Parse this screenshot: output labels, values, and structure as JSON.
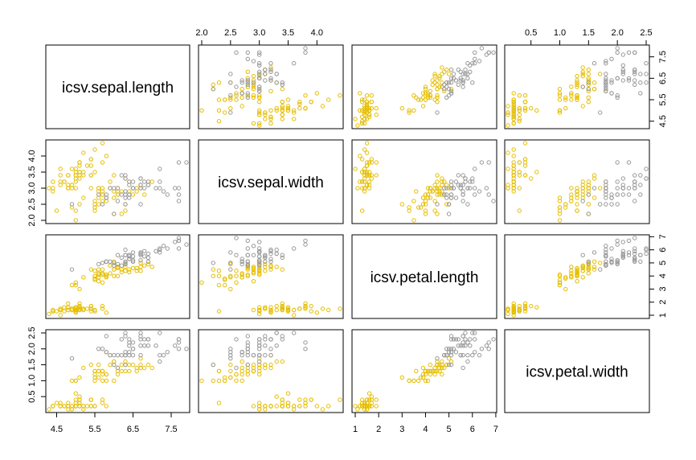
{
  "chart_data": {
    "type": "scatter",
    "title": "",
    "variables": [
      "icsv.sepal.length",
      "icsv.sepal.width",
      "icsv.petal.length",
      "icsv.petal.width"
    ],
    "ranges": [
      [
        4.3,
        7.9
      ],
      [
        2.0,
        4.4
      ],
      [
        1.0,
        6.9
      ],
      [
        0.1,
        2.5
      ]
    ],
    "ticks": [
      [
        "4.5",
        "5.5",
        "6.5",
        "7.5"
      ],
      [
        "2.0",
        "2.5",
        "3.0",
        "3.5",
        "4.0"
      ],
      [
        "1",
        "2",
        "3",
        "4",
        "5",
        "6",
        "7"
      ],
      [
        "0.5",
        "1.0",
        "1.5",
        "2.0",
        "2.5"
      ]
    ],
    "group_colors": {
      "setosa_versicolor": "#e5be01",
      "virginica": "#999999"
    },
    "grid": false,
    "series": [
      {
        "color": "#e5be01",
        "points": [
          [
            5.1,
            3.5,
            1.4,
            0.2
          ],
          [
            4.9,
            3.0,
            1.4,
            0.2
          ],
          [
            4.7,
            3.2,
            1.3,
            0.2
          ],
          [
            4.6,
            3.1,
            1.5,
            0.2
          ],
          [
            5.0,
            3.6,
            1.4,
            0.2
          ],
          [
            5.4,
            3.9,
            1.7,
            0.4
          ],
          [
            4.6,
            3.4,
            1.4,
            0.3
          ],
          [
            5.0,
            3.4,
            1.5,
            0.2
          ],
          [
            4.4,
            2.9,
            1.4,
            0.2
          ],
          [
            4.9,
            3.1,
            1.5,
            0.1
          ],
          [
            5.4,
            3.7,
            1.5,
            0.2
          ],
          [
            4.8,
            3.4,
            1.6,
            0.2
          ],
          [
            4.8,
            3.0,
            1.4,
            0.1
          ],
          [
            4.3,
            3.0,
            1.1,
            0.1
          ],
          [
            5.8,
            4.0,
            1.2,
            0.2
          ],
          [
            5.7,
            4.4,
            1.5,
            0.4
          ],
          [
            5.4,
            3.9,
            1.3,
            0.4
          ],
          [
            5.1,
            3.5,
            1.4,
            0.3
          ],
          [
            5.7,
            3.8,
            1.7,
            0.3
          ],
          [
            5.1,
            3.8,
            1.5,
            0.3
          ],
          [
            5.4,
            3.4,
            1.7,
            0.2
          ],
          [
            5.1,
            3.7,
            1.5,
            0.4
          ],
          [
            4.6,
            3.6,
            1.0,
            0.2
          ],
          [
            5.1,
            3.3,
            1.7,
            0.5
          ],
          [
            4.8,
            3.4,
            1.9,
            0.2
          ],
          [
            5.0,
            3.0,
            1.6,
            0.2
          ],
          [
            5.0,
            3.4,
            1.6,
            0.4
          ],
          [
            5.2,
            3.5,
            1.5,
            0.2
          ],
          [
            5.2,
            3.4,
            1.4,
            0.2
          ],
          [
            4.7,
            3.2,
            1.6,
            0.2
          ],
          [
            4.8,
            3.1,
            1.6,
            0.2
          ],
          [
            5.4,
            3.4,
            1.5,
            0.4
          ],
          [
            5.2,
            4.1,
            1.5,
            0.1
          ],
          [
            5.5,
            4.2,
            1.4,
            0.2
          ],
          [
            4.9,
            3.1,
            1.5,
            0.2
          ],
          [
            5.0,
            3.2,
            1.2,
            0.2
          ],
          [
            5.5,
            3.5,
            1.3,
            0.2
          ],
          [
            4.9,
            3.6,
            1.4,
            0.1
          ],
          [
            4.4,
            3.0,
            1.3,
            0.2
          ],
          [
            5.1,
            3.4,
            1.5,
            0.2
          ],
          [
            5.0,
            3.5,
            1.3,
            0.3
          ],
          [
            4.5,
            2.3,
            1.3,
            0.3
          ],
          [
            4.4,
            3.2,
            1.3,
            0.2
          ],
          [
            5.0,
            3.5,
            1.6,
            0.6
          ],
          [
            5.1,
            3.8,
            1.9,
            0.4
          ],
          [
            4.8,
            3.0,
            1.4,
            0.3
          ],
          [
            5.1,
            3.8,
            1.6,
            0.2
          ],
          [
            4.6,
            3.2,
            1.4,
            0.2
          ],
          [
            5.3,
            3.7,
            1.5,
            0.2
          ],
          [
            5.0,
            3.3,
            1.4,
            0.2
          ],
          [
            7.0,
            3.2,
            4.7,
            1.4
          ],
          [
            6.4,
            3.2,
            4.5,
            1.5
          ],
          [
            6.9,
            3.1,
            4.9,
            1.5
          ],
          [
            5.5,
            2.3,
            4.0,
            1.3
          ],
          [
            6.5,
            2.8,
            4.6,
            1.5
          ],
          [
            5.7,
            2.8,
            4.5,
            1.3
          ],
          [
            6.3,
            3.3,
            4.7,
            1.6
          ],
          [
            4.9,
            2.4,
            3.3,
            1.0
          ],
          [
            6.6,
            2.9,
            4.6,
            1.3
          ],
          [
            5.2,
            2.7,
            3.9,
            1.4
          ],
          [
            5.0,
            2.0,
            3.5,
            1.0
          ],
          [
            5.9,
            3.0,
            4.2,
            1.5
          ],
          [
            6.0,
            2.2,
            4.0,
            1.0
          ],
          [
            6.1,
            2.9,
            4.7,
            1.4
          ],
          [
            5.6,
            2.9,
            3.6,
            1.3
          ],
          [
            6.7,
            3.1,
            4.4,
            1.4
          ],
          [
            5.6,
            3.0,
            4.5,
            1.5
          ],
          [
            5.8,
            2.7,
            4.1,
            1.0
          ],
          [
            6.2,
            2.2,
            4.5,
            1.5
          ],
          [
            5.6,
            2.5,
            3.9,
            1.1
          ],
          [
            5.9,
            3.2,
            4.8,
            1.8
          ],
          [
            6.1,
            2.8,
            4.0,
            1.3
          ],
          [
            6.3,
            2.5,
            4.9,
            1.5
          ],
          [
            6.1,
            2.8,
            4.7,
            1.2
          ],
          [
            6.4,
            2.9,
            4.3,
            1.3
          ],
          [
            6.6,
            3.0,
            4.4,
            1.4
          ],
          [
            6.8,
            2.8,
            4.8,
            1.4
          ],
          [
            6.7,
            3.0,
            5.0,
            1.7
          ],
          [
            6.0,
            2.9,
            4.5,
            1.5
          ],
          [
            5.7,
            2.6,
            3.5,
            1.0
          ],
          [
            5.5,
            2.4,
            3.8,
            1.1
          ],
          [
            5.5,
            2.4,
            3.7,
            1.0
          ],
          [
            5.8,
            2.7,
            3.9,
            1.2
          ],
          [
            6.0,
            2.7,
            5.1,
            1.6
          ],
          [
            5.4,
            3.0,
            4.5,
            1.5
          ],
          [
            6.0,
            3.4,
            4.5,
            1.6
          ],
          [
            6.7,
            3.1,
            4.7,
            1.5
          ],
          [
            6.3,
            2.3,
            4.4,
            1.3
          ],
          [
            5.6,
            3.0,
            4.1,
            1.3
          ],
          [
            5.5,
            2.5,
            4.0,
            1.3
          ],
          [
            5.5,
            2.6,
            4.4,
            1.2
          ],
          [
            6.1,
            3.0,
            4.6,
            1.4
          ],
          [
            5.8,
            2.6,
            4.0,
            1.2
          ],
          [
            5.0,
            2.3,
            3.3,
            1.0
          ],
          [
            5.6,
            2.7,
            4.2,
            1.3
          ],
          [
            5.7,
            3.0,
            4.2,
            1.2
          ],
          [
            5.7,
            2.9,
            4.2,
            1.3
          ],
          [
            6.2,
            2.9,
            4.3,
            1.3
          ],
          [
            5.1,
            2.5,
            3.0,
            1.1
          ],
          [
            5.7,
            2.8,
            4.1,
            1.3
          ]
        ]
      },
      {
        "color": "#999999",
        "points": [
          [
            6.3,
            3.3,
            6.0,
            2.5
          ],
          [
            5.8,
            2.7,
            5.1,
            1.9
          ],
          [
            7.1,
            3.0,
            5.9,
            2.1
          ],
          [
            6.3,
            2.9,
            5.6,
            1.8
          ],
          [
            6.5,
            3.0,
            5.8,
            2.2
          ],
          [
            7.6,
            3.0,
            6.6,
            2.1
          ],
          [
            4.9,
            2.5,
            4.5,
            1.7
          ],
          [
            7.3,
            2.9,
            6.3,
            1.8
          ],
          [
            6.7,
            2.5,
            5.8,
            1.8
          ],
          [
            7.2,
            3.6,
            6.1,
            2.5
          ],
          [
            6.5,
            3.2,
            5.1,
            2.0
          ],
          [
            6.4,
            2.7,
            5.3,
            1.9
          ],
          [
            6.8,
            3.0,
            5.5,
            2.1
          ],
          [
            5.7,
            2.5,
            5.0,
            2.0
          ],
          [
            5.8,
            2.8,
            5.1,
            2.4
          ],
          [
            6.4,
            3.2,
            5.3,
            2.3
          ],
          [
            6.5,
            3.0,
            5.5,
            1.8
          ],
          [
            7.7,
            3.8,
            6.7,
            2.2
          ],
          [
            7.7,
            2.6,
            6.9,
            2.3
          ],
          [
            6.0,
            2.2,
            5.0,
            1.5
          ],
          [
            6.9,
            3.2,
            5.7,
            2.3
          ],
          [
            5.6,
            2.8,
            4.9,
            2.0
          ],
          [
            7.7,
            2.8,
            6.7,
            2.0
          ],
          [
            6.3,
            2.7,
            4.9,
            1.8
          ],
          [
            6.7,
            3.3,
            5.7,
            2.1
          ],
          [
            7.2,
            3.2,
            6.0,
            1.8
          ],
          [
            6.2,
            2.8,
            4.8,
            1.8
          ],
          [
            6.1,
            3.0,
            4.9,
            1.8
          ],
          [
            6.4,
            2.8,
            5.6,
            2.1
          ],
          [
            7.2,
            3.0,
            5.8,
            1.6
          ],
          [
            7.4,
            2.8,
            6.1,
            1.9
          ],
          [
            7.9,
            3.8,
            6.4,
            2.0
          ],
          [
            6.4,
            2.8,
            5.6,
            2.2
          ],
          [
            6.3,
            2.8,
            5.1,
            1.5
          ],
          [
            6.1,
            2.6,
            5.6,
            1.4
          ],
          [
            7.7,
            3.0,
            6.1,
            2.3
          ],
          [
            6.3,
            3.4,
            5.6,
            2.4
          ],
          [
            6.4,
            3.1,
            5.5,
            1.8
          ],
          [
            6.0,
            3.0,
            4.8,
            1.8
          ],
          [
            6.9,
            3.1,
            5.4,
            2.1
          ],
          [
            6.7,
            3.1,
            5.6,
            2.4
          ],
          [
            6.9,
            3.1,
            5.1,
            2.3
          ],
          [
            5.8,
            2.7,
            5.1,
            1.9
          ],
          [
            6.8,
            3.2,
            5.9,
            2.3
          ],
          [
            6.7,
            3.3,
            5.7,
            2.5
          ],
          [
            6.7,
            3.0,
            5.2,
            2.3
          ],
          [
            6.3,
            2.5,
            5.0,
            1.9
          ],
          [
            6.5,
            3.0,
            5.2,
            2.0
          ],
          [
            6.2,
            3.4,
            5.4,
            2.3
          ],
          [
            5.9,
            3.0,
            5.1,
            1.8
          ]
        ]
      }
    ]
  }
}
